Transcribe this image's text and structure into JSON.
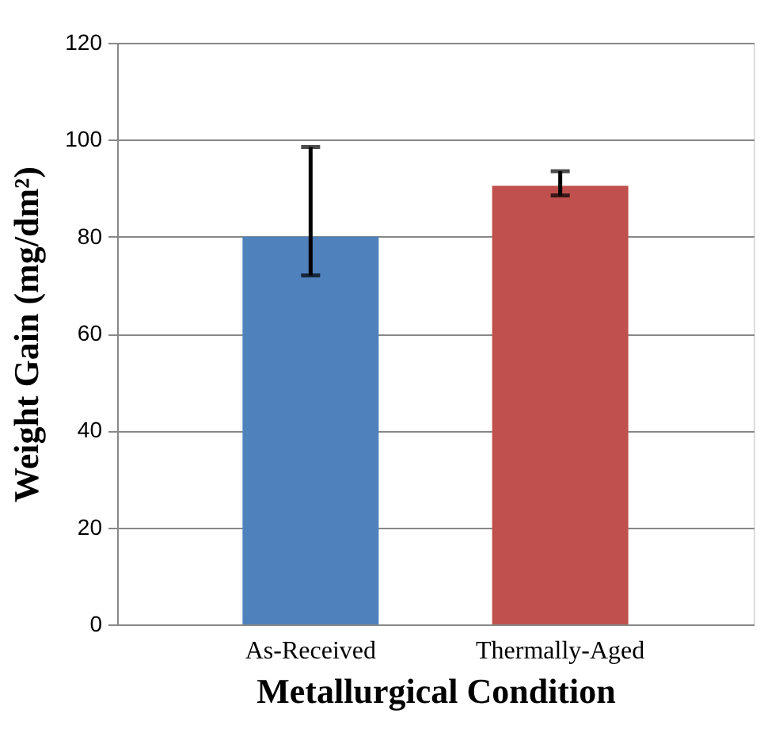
{
  "chart_data": {
    "type": "bar",
    "xlabel": "Metallurgical Condition",
    "ylabel": "Weight Gain (mg/dm²)",
    "categories": [
      "As-Received",
      "Thermally-Aged"
    ],
    "values": [
      80,
      90.5
    ],
    "colors": [
      "#4f81bd",
      "#c0504d"
    ],
    "errors": [
      [
        72,
        98.5
      ],
      [
        88.5,
        93.5
      ]
    ],
    "ylim": [
      0,
      120
    ],
    "yticks": [
      0,
      20,
      40,
      60,
      80,
      100,
      120
    ],
    "grid": "y"
  }
}
